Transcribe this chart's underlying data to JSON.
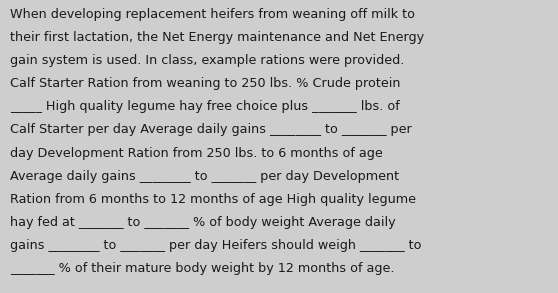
{
  "background_color": "#cecece",
  "text_color": "#1a1a1a",
  "font_size": 9.2,
  "lines": [
    "When developing replacement heifers from weaning off milk to",
    "their first lactation, the Net Energy maintenance and Net Energy",
    "gain system is used. In class, example rations were provided.",
    "Calf Starter Ration from weaning to 250 lbs. % Crude protein",
    "_____ High quality legume hay free choice plus _______ lbs. of",
    "Calf Starter per day Average daily gains ________ to _______ per",
    "day Development Ration from 250 lbs. to 6 months of age",
    "Average daily gains ________ to _______ per day Development",
    "Ration from 6 months to 12 months of age High quality legume",
    "hay fed at _______ to _______ % of body weight Average daily",
    "gains ________ to _______ per day Heifers should weigh _______ to",
    "_______ % of their mature body weight by 12 months of age."
  ]
}
